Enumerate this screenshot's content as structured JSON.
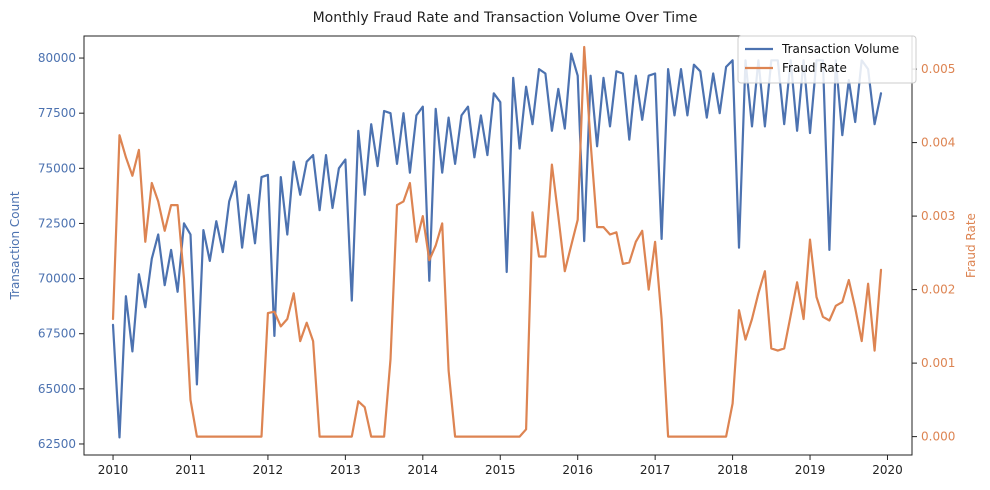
{
  "chart_data": {
    "type": "line",
    "title": "Monthly Fraud Rate and Transaction Volume Over Time",
    "xlabel": "",
    "x_ticks": [
      "2010",
      "2011",
      "2012",
      "2013",
      "2014",
      "2015",
      "2016",
      "2017",
      "2018",
      "2019",
      "2020"
    ],
    "x_range": [
      "2010-01",
      "2020-01"
    ],
    "left_axis": {
      "label": "Transaction Count",
      "color": "#4c72b0",
      "ylim": [
        62000,
        81000
      ],
      "ticks": [
        "62500",
        "65000",
        "67500",
        "70000",
        "72500",
        "75000",
        "77500",
        "80000"
      ],
      "tick_values": [
        62500,
        65000,
        67500,
        70000,
        72500,
        75000,
        77500,
        80000
      ]
    },
    "right_axis": {
      "label": "Fraud Rate",
      "color": "#dd8452",
      "ylim": [
        -0.00025,
        0.00545
      ],
      "ticks": [
        "0.000",
        "0.001",
        "0.002",
        "0.003",
        "0.004",
        "0.005"
      ],
      "tick_values": [
        0,
        0.001,
        0.002,
        0.003,
        0.004,
        0.005
      ]
    },
    "legend": {
      "placement": "top-right",
      "entries": [
        "Transaction Volume",
        "Fraud Rate"
      ]
    },
    "start_month": "2010-01",
    "series": [
      {
        "name": "Transaction Volume",
        "color": "#4c72b0",
        "axis": "left",
        "values": [
          67900,
          62800,
          69200,
          66700,
          70200,
          68700,
          70900,
          72000,
          69700,
          71300,
          69400,
          72500,
          72000,
          65200,
          72200,
          70800,
          72600,
          71200,
          73500,
          74400,
          71400,
          73800,
          71600,
          74600,
          74700,
          67400,
          74600,
          72000,
          75300,
          73800,
          75300,
          75600,
          73100,
          75600,
          73200,
          75000,
          75400,
          69000,
          76700,
          73800,
          77000,
          75100,
          77600,
          77500,
          75200,
          77500,
          74800,
          77400,
          77800,
          69900,
          77700,
          74800,
          77300,
          75200,
          77400,
          77800,
          75500,
          77400,
          75600,
          78400,
          78000,
          70300,
          79100,
          75900,
          78700,
          77000,
          79500,
          79300,
          76700,
          78600,
          76800,
          80200,
          79200,
          71700,
          79200,
          76000,
          79100,
          76900,
          79400,
          79300,
          76300,
          79200,
          77200,
          79200,
          79300,
          71800,
          79500,
          77400,
          79500,
          77400,
          79700,
          79400,
          77300,
          79300,
          77500,
          79600,
          79900,
          71400,
          79900,
          76900,
          79900,
          76900,
          79900,
          79900,
          77000,
          79900,
          76700,
          79900,
          76600,
          79900,
          79900,
          71300,
          79900,
          76500,
          79000,
          77100,
          79900,
          79500,
          77000,
          78400
        ]
      },
      {
        "name": "Fraud Rate",
        "color": "#dd8452",
        "axis": "left-right",
        "values": [
          0.0016,
          0.0041,
          0.0038,
          0.00355,
          0.0039,
          0.00265,
          0.00345,
          0.0032,
          0.0028,
          0.00315,
          0.00315,
          0.00215,
          0.0005,
          0,
          0,
          0,
          0,
          0,
          0,
          0,
          0,
          0,
          0,
          0,
          0.00168,
          0.0017,
          0.0015,
          0.0016,
          0.00195,
          0.0013,
          0.00155,
          0.0013,
          0,
          0,
          0,
          0,
          0,
          0,
          0.00048,
          0.0004,
          0,
          0,
          0,
          0.00105,
          0.00315,
          0.0032,
          0.00345,
          0.00265,
          0.003,
          0.0024,
          0.0026,
          0.0029,
          0.0009,
          0,
          0,
          0,
          0,
          0,
          0,
          0,
          0,
          0,
          0,
          0,
          0.0001,
          0.00305,
          0.00245,
          0.00245,
          0.0037,
          0.003,
          0.00225,
          0.0026,
          0.00295,
          0.0053,
          0.004,
          0.00285,
          0.00285,
          0.00275,
          0.00278,
          0.00235,
          0.00237,
          0.00265,
          0.0028,
          0.002,
          0.00265,
          0.0016,
          0,
          0,
          0,
          0,
          0,
          0,
          0,
          0,
          0,
          0,
          0.00045,
          0.00172,
          0.00132,
          0.0016,
          0.00195,
          0.00225,
          0.0012,
          0.00117,
          0.0012,
          0.00165,
          0.0021,
          0.0016,
          0.00268,
          0.0019,
          0.00163,
          0.00158,
          0.00178,
          0.00183,
          0.00213,
          0.00175,
          0.0013,
          0.00208,
          0.00117,
          0.00227
        ]
      }
    ]
  }
}
